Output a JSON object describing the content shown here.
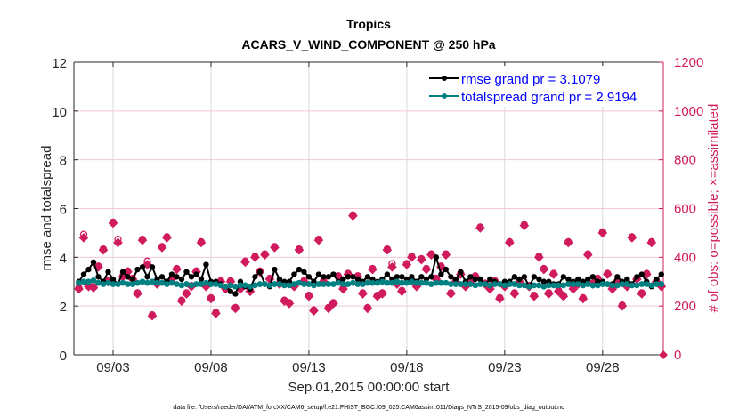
{
  "chart_data": {
    "type": "line",
    "title": "Tropics",
    "subtitle": "ACARS_V_WIND_COMPONENT @ 250 hPa",
    "xlabel": "Sep.01,2015 00:00:00 start",
    "ylabel": "rmse and totalspread",
    "y2label": "# of obs: o=possible; ×=assimilated",
    "footer": "data file: /Users/raeder/DAI/ATM_forcXX/CAM6_setup/f.e21.FHIST_BGC.f09_025.CAM6assim.011/Diags_NTrS_2015-09/obs_diag_output.nc",
    "x_unit": "days since Sep.01,2015 00:00",
    "xlim": [
      0,
      30.1
    ],
    "ylim": [
      0,
      12
    ],
    "y2lim": [
      0,
      1200
    ],
    "grid": true,
    "legend_position": "top-right",
    "xticks": [
      {
        "value": 2,
        "label": "09/03"
      },
      {
        "value": 7,
        "label": "09/08"
      },
      {
        "value": 12,
        "label": "09/13"
      },
      {
        "value": 17,
        "label": "09/18"
      },
      {
        "value": 22,
        "label": "09/23"
      },
      {
        "value": 27,
        "label": "09/28"
      }
    ],
    "yticks": [
      0,
      2,
      4,
      6,
      8,
      10,
      12
    ],
    "y2ticks": [
      0,
      200,
      400,
      600,
      800,
      1000,
      1200
    ],
    "x_step_days": 0.25,
    "x_start_days": 0.25,
    "series": [
      {
        "name": "rmse grand pr = 3.1079",
        "color": "#000000",
        "axis": "left",
        "values": [
          3.0,
          3.3,
          3.5,
          3.8,
          3.2,
          3.0,
          3.4,
          3.1,
          2.9,
          3.4,
          3.2,
          3.1,
          3.5,
          3.6,
          3.2,
          3.6,
          3.1,
          3.2,
          3.0,
          3.3,
          3.2,
          3.1,
          3.4,
          3.2,
          3.3,
          3.1,
          3.7,
          3.0,
          3.0,
          2.9,
          2.8,
          2.6,
          2.5,
          3.0,
          2.8,
          2.7,
          3.2,
          3.4,
          2.9,
          2.8,
          3.5,
          3.1,
          3.0,
          3.0,
          3.3,
          3.5,
          3.4,
          3.2,
          3.0,
          3.3,
          3.2,
          3.2,
          3.3,
          3.0,
          3.1,
          3.2,
          3.2,
          3.1,
          3.0,
          3.2,
          3.1,
          3.0,
          3.1,
          3.3,
          3.1,
          3.2,
          3.2,
          3.1,
          3.2,
          3.0,
          3.2,
          3.1,
          3.2,
          4.0,
          3.3,
          3.5,
          3.2,
          3.1,
          3.4,
          3.0,
          3.2,
          3.1,
          3.1,
          2.9,
          3.1,
          3.0,
          2.9,
          3.0,
          3.0,
          3.2,
          3.1,
          3.2,
          2.8,
          3.2,
          3.1,
          3.0,
          3.0,
          2.9,
          2.9,
          3.2,
          3.1,
          3.0,
          3.1,
          3.0,
          3.1,
          3.2,
          3.0,
          3.0,
          2.9,
          2.9,
          3.2,
          3.0,
          3.1,
          2.9,
          3.2,
          3.3,
          3.0,
          2.8,
          3.1,
          3.3,
          3.0,
          2.8,
          3.2,
          3.0,
          3.0,
          3.6,
          3.0,
          2.9,
          3.2,
          3.1,
          3.3,
          3.1,
          3.4,
          3.2,
          3.0,
          3.1,
          3.5
        ]
      },
      {
        "name": "totalspread grand pr = 2.9194",
        "color": "#008080",
        "axis": "left",
        "values": [
          2.95,
          3.0,
          3.0,
          3.05,
          2.95,
          2.9,
          2.95,
          2.9,
          2.9,
          2.95,
          2.9,
          2.9,
          2.95,
          3.0,
          2.95,
          3.0,
          2.95,
          2.95,
          2.9,
          2.95,
          2.9,
          2.85,
          2.9,
          2.85,
          2.9,
          2.9,
          2.95,
          2.9,
          2.9,
          2.85,
          2.8,
          2.85,
          2.8,
          2.85,
          2.85,
          2.8,
          2.85,
          2.9,
          2.9,
          2.85,
          2.9,
          2.9,
          2.85,
          2.85,
          2.9,
          2.95,
          2.9,
          2.9,
          2.85,
          2.9,
          2.9,
          2.9,
          2.9,
          2.95,
          2.9,
          2.9,
          2.95,
          2.9,
          2.9,
          2.95,
          2.95,
          2.95,
          3.0,
          2.95,
          2.95,
          3.0,
          2.95,
          2.95,
          3.0,
          2.95,
          2.95,
          2.95,
          2.9,
          2.95,
          2.95,
          2.95,
          2.9,
          2.9,
          2.9,
          2.9,
          2.9,
          2.85,
          2.9,
          2.9,
          2.85,
          2.9,
          2.9,
          2.85,
          2.9,
          2.9,
          2.85,
          2.85,
          2.8,
          2.85,
          2.85,
          2.8,
          2.85,
          2.85,
          2.85,
          2.85,
          2.9,
          2.9,
          2.9,
          2.85,
          2.9,
          2.85,
          2.85,
          2.9,
          2.9,
          2.85,
          2.85,
          2.9,
          2.9,
          2.85,
          2.85,
          2.9,
          2.9,
          2.85,
          2.9,
          2.9,
          2.95,
          2.95,
          2.9,
          2.95,
          2.95,
          2.95,
          2.95,
          3.0,
          2.95,
          3.0,
          3.0,
          3.0,
          3.0,
          3.0,
          3.0
        ]
      },
      {
        "name": "obs possible",
        "color": "#d01c5e",
        "axis": "right",
        "marker": "o",
        "values": [
          270,
          490,
          280,
          275,
          360,
          430,
          300,
          540,
          470,
          320,
          340,
          310,
          250,
          470,
          380,
          160,
          290,
          440,
          480,
          310,
          350,
          220,
          250,
          280,
          340,
          460,
          280,
          230,
          170,
          300,
          270,
          300,
          190,
          270,
          380,
          260,
          400,
          340,
          410,
          310,
          440,
          290,
          220,
          210,
          280,
          430,
          300,
          240,
          180,
          470,
          300,
          190,
          210,
          320,
          270,
          330,
          570,
          320,
          250,
          190,
          350,
          240,
          250,
          430,
          370,
          290,
          260,
          370,
          400,
          280,
          390,
          350,
          410,
          310,
          360,
          410,
          250,
          300,
          330,
          280,
          300,
          320,
          520,
          290,
          270,
          300,
          230,
          280,
          460,
          250,
          300,
          530,
          280,
          240,
          400,
          350,
          250,
          330,
          260,
          240,
          460,
          270,
          290,
          230,
          410,
          290,
          310,
          500,
          330,
          270,
          300,
          200,
          280,
          480,
          310,
          250,
          330,
          460,
          300,
          280,
          390,
          290,
          510,
          260,
          340,
          600,
          280,
          320,
          360,
          380,
          150,
          440,
          270,
          300,
          380,
          200,
          510
        ]
      },
      {
        "name": "obs assimilated",
        "color": "#d01c5e",
        "axis": "right",
        "marker": "x",
        "values": [
          270,
          480,
          280,
          275,
          360,
          430,
          300,
          540,
          460,
          320,
          340,
          310,
          250,
          470,
          370,
          160,
          290,
          440,
          480,
          310,
          350,
          220,
          250,
          280,
          340,
          460,
          280,
          230,
          170,
          300,
          270,
          300,
          190,
          270,
          380,
          260,
          400,
          340,
          410,
          310,
          440,
          290,
          220,
          210,
          280,
          430,
          300,
          240,
          180,
          470,
          300,
          190,
          210,
          320,
          270,
          330,
          570,
          320,
          250,
          190,
          350,
          240,
          250,
          430,
          360,
          290,
          260,
          370,
          400,
          280,
          390,
          350,
          410,
          310,
          360,
          410,
          250,
          300,
          330,
          280,
          300,
          320,
          520,
          290,
          270,
          300,
          230,
          280,
          460,
          250,
          300,
          530,
          280,
          240,
          400,
          350,
          250,
          330,
          260,
          240,
          460,
          270,
          290,
          230,
          410,
          290,
          310,
          500,
          330,
          270,
          300,
          200,
          280,
          480,
          310,
          250,
          330,
          460,
          300,
          280,
          390,
          290,
          510,
          260,
          340,
          600,
          280,
          320,
          360,
          380,
          150,
          440,
          270,
          300,
          380,
          200,
          510
        ]
      }
    ]
  }
}
